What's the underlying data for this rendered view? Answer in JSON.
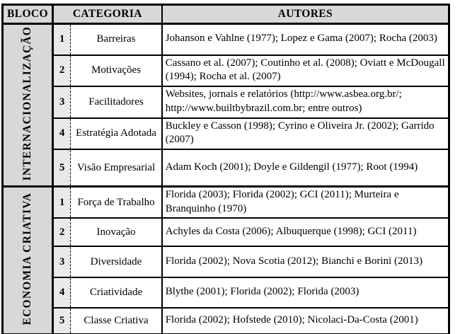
{
  "table": {
    "headers": {
      "bloco": "BLOCO",
      "categoria": "CATEGORIA",
      "autores": "AUTORES"
    },
    "blocks": [
      {
        "name": "INTERNACIONALIZAÇÃO",
        "rows": [
          {
            "num": "1",
            "categoria": "Barreiras",
            "autores": "Johanson e Vahlne (1977); Lopez e Gama (2007); Rocha (2003)"
          },
          {
            "num": "2",
            "categoria": "Motivações",
            "autores": "Cassano et al. (2007); Coutinho et al. (2008); Oviatt e McDougall (1994); Rocha et al. (2007)"
          },
          {
            "num": "3",
            "categoria": "Facilitadores",
            "autores": "Websites, jornais e relatórios (http://www.asbea.org.br/; http://www.builtbybrazil.com.br; entre outros)"
          },
          {
            "num": "4",
            "categoria": "Estratégia Adotada",
            "autores": "Buckley e Casson (1998); Cyrino e Oliveira Jr. (2002); Garrido (2007)"
          },
          {
            "num": "5",
            "categoria": "Visão Empresarial",
            "autores": "Adam Koch (2001); Doyle e Gildengil (1977); Root (1994)"
          }
        ]
      },
      {
        "name": "ECONOMIA CRIATIVA",
        "rows": [
          {
            "num": "1",
            "categoria": "Força de Trabalho",
            "autores": "Florida (2003); Florida (2002); GCI (2011); Murteira e Branquinho (1970)"
          },
          {
            "num": "2",
            "categoria": "Inovação",
            "autores": "Achyles da Costa (2006); Albuquerque (1998); GCI (2011)"
          },
          {
            "num": "3",
            "categoria": "Diversidade",
            "autores": "Florida (2002); Nova Scotia (2012); Bianchi e Borini (2013)"
          },
          {
            "num": "4",
            "categoria": "Criatividade",
            "autores": "Blythe (2001); Florida (2002); Florida (2003)"
          },
          {
            "num": "5",
            "categoria": "Classe Criativa",
            "autores": "Florida (2002); Hofstede (2010); Nicolaci-Da-Costa (2001)"
          }
        ]
      }
    ],
    "colors": {
      "header_bg": "#d8d8d8",
      "bloco_bg": "#d8d8d8",
      "num_bg": "#e9e9e9",
      "border": "#000000"
    }
  }
}
